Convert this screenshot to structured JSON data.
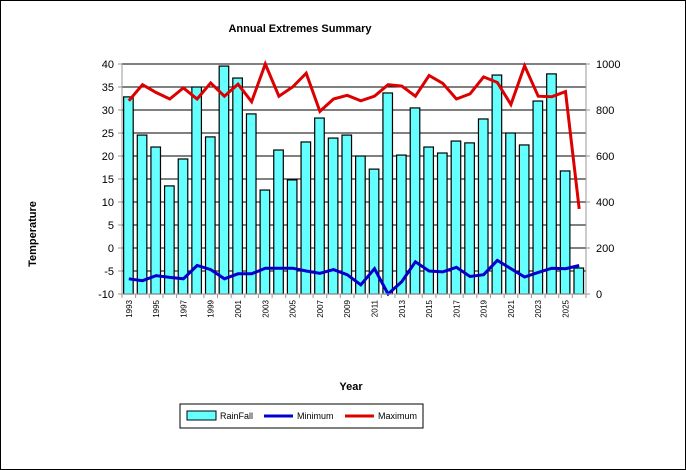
{
  "chart_data": {
    "type": "bar",
    "title": "Annual Extremes Summary",
    "xlabel": "Year",
    "ylabel": "Temperature",
    "y2label": "",
    "ylim": [
      -10,
      40
    ],
    "y2lim": [
      0,
      1000
    ],
    "yticks": [
      "-10",
      "-5",
      "0",
      "5",
      "10",
      "15",
      "20",
      "25",
      "30",
      "35",
      "40"
    ],
    "y2ticks": [
      "0",
      "200",
      "400",
      "600",
      "800",
      "1000"
    ],
    "grid": true,
    "legend_position": "bottom",
    "categories": [
      "1993",
      "1994",
      "1995",
      "1996",
      "1997",
      "1998",
      "1999",
      "2000",
      "2001",
      "2002",
      "2003",
      "2004",
      "2005",
      "2006",
      "2007",
      "2008",
      "2009",
      "2010",
      "2011",
      "2012",
      "2013",
      "2014",
      "2015",
      "2016",
      "2017",
      "2018",
      "2019",
      "2020",
      "2021",
      "2022",
      "2023",
      "2024",
      "2025",
      "2026"
    ],
    "xtick_labels": [
      "1993",
      "1995",
      "1997",
      "1999",
      "2001",
      "2003",
      "2005",
      "2007",
      "2009",
      "2011",
      "2013",
      "2015",
      "2017",
      "2019",
      "2021",
      "2023",
      "2025"
    ],
    "series": [
      {
        "name": "RainFall",
        "kind": "bar",
        "axis": "right",
        "color": "#66FFFF",
        "values": [
          857,
          691,
          639,
          470,
          587,
          900,
          683,
          991,
          939,
          783,
          452,
          626,
          496,
          661,
          765,
          678,
          691,
          600,
          543,
          874,
          604,
          809,
          639,
          613,
          665,
          657,
          761,
          952,
          700,
          648,
          839,
          957,
          535,
          113
        ]
      },
      {
        "name": "Minimum",
        "kind": "line",
        "axis": "left",
        "color": "#0000CC",
        "values": [
          -6.7,
          -7.1,
          -6.0,
          -6.4,
          -6.7,
          -3.8,
          -4.7,
          -6.7,
          -5.6,
          -5.6,
          -4.4,
          -4.4,
          -4.4,
          -5.0,
          -5.5,
          -4.7,
          -5.8,
          -8.0,
          -4.5,
          -10.0,
          -7.3,
          -3.0,
          -5.0,
          -5.2,
          -4.2,
          -6.2,
          -5.8,
          -2.7,
          -4.5,
          -6.3,
          -5.3,
          -4.4,
          -4.5,
          -3.8
        ]
      },
      {
        "name": "Maximum",
        "kind": "line",
        "axis": "left",
        "color": "#DD0000",
        "values": [
          32.0,
          35.5,
          33.8,
          32.4,
          34.8,
          32.4,
          35.9,
          33.0,
          35.6,
          31.8,
          40.0,
          33.0,
          35.0,
          38.0,
          29.7,
          32.4,
          33.2,
          32.0,
          33.0,
          35.5,
          35.2,
          33.0,
          37.5,
          35.8,
          32.4,
          33.5,
          37.2,
          36.0,
          31.2,
          39.6,
          33.0,
          32.9,
          34.0,
          8.5
        ]
      }
    ]
  }
}
